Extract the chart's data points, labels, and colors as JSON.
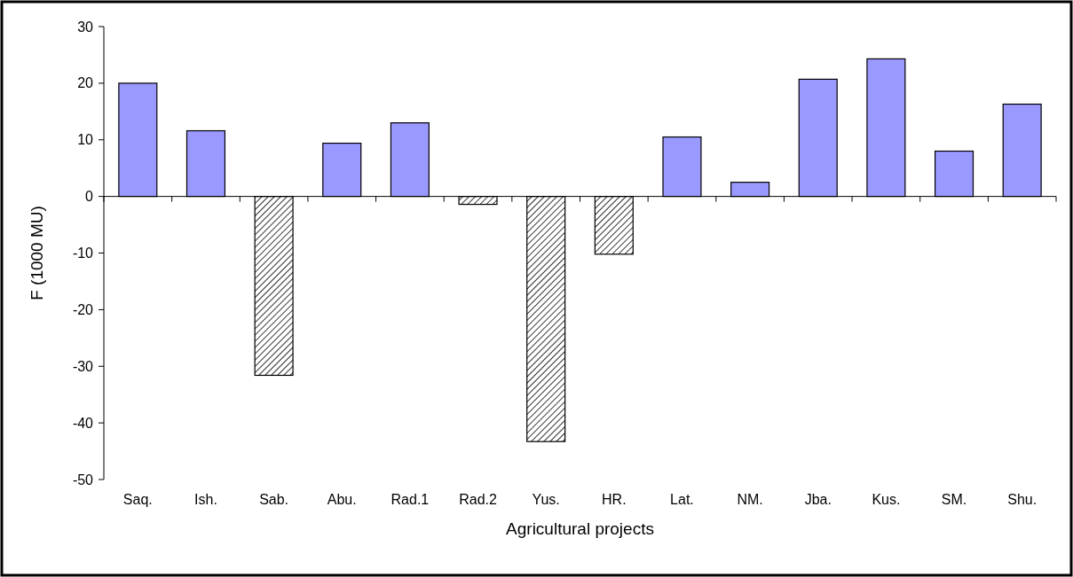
{
  "chart_data": {
    "type": "bar",
    "xlabel": "Agricultural projects",
    "ylabel": "F (1000 MU)",
    "categories": [
      "Saq.",
      "Ish.",
      "Sab.",
      "Abu.",
      "Rad.1",
      "Rad.2",
      "Yus.",
      "HR.",
      "Lat.",
      "NM.",
      "Jba.",
      "Kus.",
      "SM.",
      "Shu."
    ],
    "values": [
      20,
      11.6,
      -31.6,
      9.4,
      13,
      -1.4,
      -43.3,
      -10.2,
      10.5,
      2.5,
      20.7,
      24.3,
      8,
      16.3
    ],
    "colors": [
      "#9999ff",
      "#9999ff",
      "#000000",
      "#9999ff",
      "#9999ff",
      "#000000",
      "#000000",
      "#000000",
      "#9999ff",
      "#9999ff",
      "#9999ff",
      "#9999ff",
      "#9999ff",
      "#9999ff"
    ],
    "ylim": [
      -50,
      30
    ],
    "yticks": [
      -50,
      -40,
      -30,
      -20,
      -10,
      0,
      10,
      20,
      30
    ]
  }
}
